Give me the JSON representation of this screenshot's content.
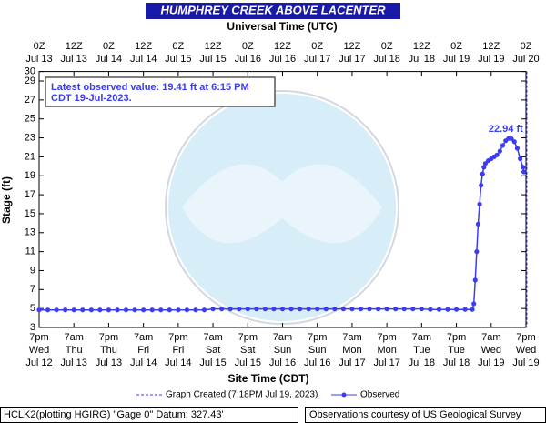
{
  "chart_data": {
    "type": "line",
    "title": "HUMPHREY CREEK ABOVE LACENTER",
    "top_axis_label": "Universal Time (UTC)",
    "x_label": "Site Time (CDT)",
    "y_label": "Stage (ft)",
    "xlim": [
      0,
      168
    ],
    "ylim": [
      3,
      30
    ],
    "yticks": [
      3,
      5,
      7,
      9,
      11,
      13,
      15,
      17,
      19,
      21,
      23,
      25,
      27,
      29,
      30
    ],
    "xticks": [
      {
        "value": 0,
        "label": [
          "7pm",
          "Wed",
          "Jul 12"
        ]
      },
      {
        "value": 12,
        "label": [
          "7am",
          "Thu",
          "Jul 13"
        ]
      },
      {
        "value": 24,
        "label": [
          "7pm",
          "Thu",
          "Jul 13"
        ]
      },
      {
        "value": 36,
        "label": [
          "7am",
          "Fri",
          "Jul 14"
        ]
      },
      {
        "value": 48,
        "label": [
          "7pm",
          "Fri",
          "Jul 14"
        ]
      },
      {
        "value": 60,
        "label": [
          "7am",
          "Sat",
          "Jul 15"
        ]
      },
      {
        "value": 72,
        "label": [
          "7pm",
          "Sat",
          "Jul 15"
        ]
      },
      {
        "value": 84,
        "label": [
          "7am",
          "Sun",
          "Jul 16"
        ]
      },
      {
        "value": 96,
        "label": [
          "7pm",
          "Sun",
          "Jul 16"
        ]
      },
      {
        "value": 108,
        "label": [
          "7am",
          "Mon",
          "Jul 17"
        ]
      },
      {
        "value": 120,
        "label": [
          "7pm",
          "Mon",
          "Jul 17"
        ]
      },
      {
        "value": 132,
        "label": [
          "7am",
          "Tue",
          "Jul 18"
        ]
      },
      {
        "value": 144,
        "label": [
          "7pm",
          "Tue",
          "Jul 18"
        ]
      },
      {
        "value": 156,
        "label": [
          "7am",
          "Wed",
          "Jul 19"
        ]
      },
      {
        "value": 168,
        "label": [
          "7pm",
          "Wed",
          "Jul 19"
        ]
      }
    ],
    "top_xticks": [
      {
        "value": 0,
        "label": [
          "0Z",
          "Jul 13"
        ]
      },
      {
        "value": 12,
        "label": [
          "12Z",
          "Jul 13"
        ]
      },
      {
        "value": 24,
        "label": [
          "0Z",
          "Jul 14"
        ]
      },
      {
        "value": 36,
        "label": [
          "12Z",
          "Jul 14"
        ]
      },
      {
        "value": 48,
        "label": [
          "0Z",
          "Jul 15"
        ]
      },
      {
        "value": 60,
        "label": [
          "12Z",
          "Jul 15"
        ]
      },
      {
        "value": 72,
        "label": [
          "0Z",
          "Jul 16"
        ]
      },
      {
        "value": 84,
        "label": [
          "12Z",
          "Jul 16"
        ]
      },
      {
        "value": 96,
        "label": [
          "0Z",
          "Jul 17"
        ]
      },
      {
        "value": 108,
        "label": [
          "12Z",
          "Jul 17"
        ]
      },
      {
        "value": 120,
        "label": [
          "0Z",
          "Jul 18"
        ]
      },
      {
        "value": 132,
        "label": [
          "12Z",
          "Jul 18"
        ]
      },
      {
        "value": 144,
        "label": [
          "0Z",
          "Jul 19"
        ]
      },
      {
        "value": 156,
        "label": [
          "12Z",
          "Jul 19"
        ]
      },
      {
        "value": 168,
        "label": [
          "0Z",
          "Jul 20"
        ]
      }
    ],
    "x": [
      0,
      3,
      6,
      9,
      12,
      15,
      18,
      21,
      24,
      27,
      30,
      33,
      36,
      39,
      42,
      45,
      48,
      51,
      54,
      57,
      60,
      63,
      66,
      69,
      72,
      75,
      78,
      81,
      84,
      87,
      90,
      93,
      96,
      99,
      102,
      105,
      108,
      111,
      114,
      117,
      120,
      123,
      126,
      129,
      132,
      135,
      138,
      141,
      144,
      147,
      149.5,
      150,
      150.5,
      151,
      151.5,
      152,
      152.5,
      153,
      153.5,
      154,
      155,
      156,
      157,
      158,
      159,
      160,
      161,
      162,
      163,
      164,
      165,
      166,
      167,
      167.25
    ],
    "series": [
      {
        "name": "Observed",
        "color": "#3c3cf0",
        "values": [
          4.85,
          4.85,
          4.85,
          4.85,
          4.85,
          4.85,
          4.85,
          4.85,
          4.85,
          4.85,
          4.85,
          4.85,
          4.85,
          4.85,
          4.85,
          4.85,
          4.85,
          4.85,
          4.85,
          4.85,
          4.95,
          4.95,
          4.95,
          4.95,
          4.95,
          4.95,
          4.95,
          4.95,
          4.95,
          4.95,
          4.95,
          4.95,
          4.95,
          4.95,
          4.95,
          4.95,
          4.95,
          4.95,
          4.95,
          4.95,
          4.95,
          4.95,
          4.95,
          4.95,
          4.95,
          4.9,
          4.9,
          4.9,
          4.9,
          4.9,
          4.9,
          5.5,
          8.0,
          11.0,
          13.9,
          16.0,
          18.0,
          19.2,
          19.9,
          20.3,
          20.6,
          20.8,
          21.0,
          21.2,
          21.6,
          22.2,
          22.7,
          22.94,
          22.9,
          22.6,
          21.9,
          20.8,
          19.9,
          19.41
        ]
      }
    ],
    "peak_label": "22.94 ft",
    "latest_note": [
      "Latest observed value: 19.41 ft at 6:15 PM",
      "CDT 19-Jul-2023."
    ],
    "graph_created": {
      "label": "Graph Created (7:18PM Jul 19, 2023)",
      "x": 168.3
    },
    "footer_left": "HCLK2(plotting HGIRG) \"Gage 0\" Datum: 327.43'",
    "footer_right": "Observations courtesy of US Geological Survey"
  }
}
